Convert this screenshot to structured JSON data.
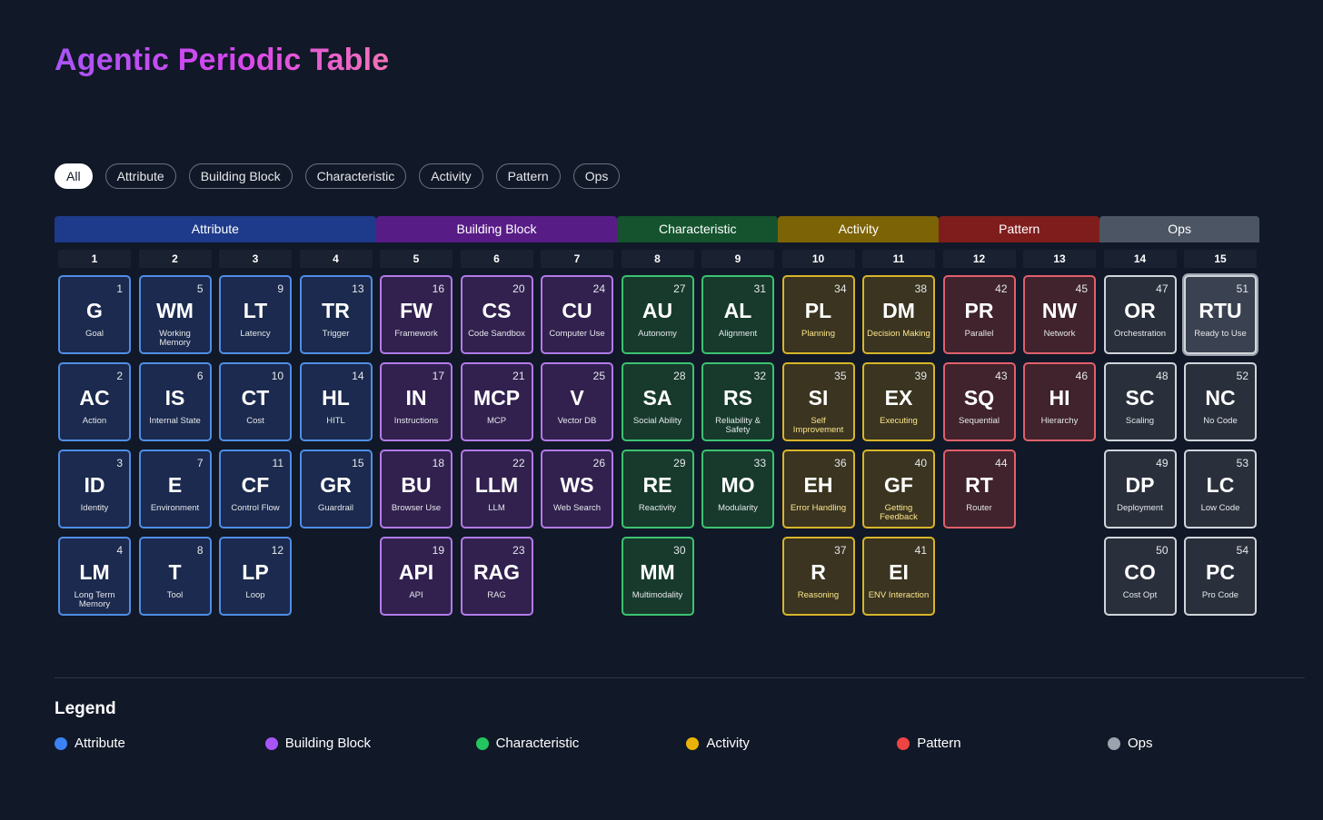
{
  "title": "Agentic Periodic Table",
  "filters": [
    "All",
    "Attribute",
    "Building Block",
    "Characteristic",
    "Activity",
    "Pattern",
    "Ops"
  ],
  "active_filter": "All",
  "categories": [
    {
      "key": "attribute",
      "label": "Attribute",
      "start_col": 1,
      "end_col": 4,
      "header_color": "#1e3a8a",
      "fill": "#1b2a4e",
      "border": "#4f8ee6"
    },
    {
      "key": "building",
      "label": "Building Block",
      "start_col": 5,
      "end_col": 7,
      "header_color": "#581c87",
      "fill": "#32214f",
      "border": "#b27be8"
    },
    {
      "key": "characteristic",
      "label": "Characteristic",
      "start_col": 8,
      "end_col": 9,
      "header_color": "#14532d",
      "fill": "#173a2c",
      "border": "#3dc271"
    },
    {
      "key": "activity",
      "label": "Activity",
      "start_col": 10,
      "end_col": 11,
      "header_color": "#7c6305",
      "fill": "#3a3420",
      "border": "#d8b52a"
    },
    {
      "key": "pattern",
      "label": "Pattern",
      "start_col": 12,
      "end_col": 13,
      "header_color": "#7f1d1d",
      "fill": "#40232c",
      "border": "#e0606b"
    },
    {
      "key": "ops",
      "label": "Ops",
      "start_col": 14,
      "end_col": 15,
      "header_color": "#4b5563",
      "fill": "#2a303b",
      "border": "#d1d5db"
    }
  ],
  "columns": [
    "1",
    "2",
    "3",
    "4",
    "5",
    "6",
    "7",
    "8",
    "9",
    "10",
    "11",
    "12",
    "13",
    "14",
    "15"
  ],
  "elements": [
    {
      "n": "1",
      "sym": "G",
      "name": "Goal",
      "cat": "attribute",
      "col": 1,
      "row": 1
    },
    {
      "n": "2",
      "sym": "AC",
      "name": "Action",
      "cat": "attribute",
      "col": 1,
      "row": 2
    },
    {
      "n": "3",
      "sym": "ID",
      "name": "Identity",
      "cat": "attribute",
      "col": 1,
      "row": 3
    },
    {
      "n": "4",
      "sym": "LM",
      "name": "Long Term Memory",
      "cat": "attribute",
      "col": 1,
      "row": 4
    },
    {
      "n": "5",
      "sym": "WM",
      "name": "Working Memory",
      "cat": "attribute",
      "col": 2,
      "row": 1
    },
    {
      "n": "6",
      "sym": "IS",
      "name": "Internal State",
      "cat": "attribute",
      "col": 2,
      "row": 2
    },
    {
      "n": "7",
      "sym": "E",
      "name": "Environment",
      "cat": "attribute",
      "col": 2,
      "row": 3
    },
    {
      "n": "8",
      "sym": "T",
      "name": "Tool",
      "cat": "attribute",
      "col": 2,
      "row": 4
    },
    {
      "n": "9",
      "sym": "LT",
      "name": "Latency",
      "cat": "attribute",
      "col": 3,
      "row": 1
    },
    {
      "n": "10",
      "sym": "CT",
      "name": "Cost",
      "cat": "attribute",
      "col": 3,
      "row": 2
    },
    {
      "n": "11",
      "sym": "CF",
      "name": "Control Flow",
      "cat": "attribute",
      "col": 3,
      "row": 3
    },
    {
      "n": "12",
      "sym": "LP",
      "name": "Loop",
      "cat": "attribute",
      "col": 3,
      "row": 4
    },
    {
      "n": "13",
      "sym": "TR",
      "name": "Trigger",
      "cat": "attribute",
      "col": 4,
      "row": 1
    },
    {
      "n": "14",
      "sym": "HL",
      "name": "HITL",
      "cat": "attribute",
      "col": 4,
      "row": 2
    },
    {
      "n": "15",
      "sym": "GR",
      "name": "Guardrail",
      "cat": "attribute",
      "col": 4,
      "row": 3
    },
    {
      "n": "16",
      "sym": "FW",
      "name": "Framework",
      "cat": "building",
      "col": 5,
      "row": 1
    },
    {
      "n": "17",
      "sym": "IN",
      "name": "Instructions",
      "cat": "building",
      "col": 5,
      "row": 2
    },
    {
      "n": "18",
      "sym": "BU",
      "name": "Browser Use",
      "cat": "building",
      "col": 5,
      "row": 3
    },
    {
      "n": "19",
      "sym": "API",
      "name": "API",
      "cat": "building",
      "col": 5,
      "row": 4
    },
    {
      "n": "20",
      "sym": "CS",
      "name": "Code Sandbox",
      "cat": "building",
      "col": 6,
      "row": 1
    },
    {
      "n": "21",
      "sym": "MCP",
      "name": "MCP",
      "cat": "building",
      "col": 6,
      "row": 2
    },
    {
      "n": "22",
      "sym": "LLM",
      "name": "LLM",
      "cat": "building",
      "col": 6,
      "row": 3
    },
    {
      "n": "23",
      "sym": "RAG",
      "name": "RAG",
      "cat": "building",
      "col": 6,
      "row": 4
    },
    {
      "n": "24",
      "sym": "CU",
      "name": "Computer Use",
      "cat": "building",
      "col": 7,
      "row": 1
    },
    {
      "n": "25",
      "sym": "V",
      "name": "Vector DB",
      "cat": "building",
      "col": 7,
      "row": 2
    },
    {
      "n": "26",
      "sym": "WS",
      "name": "Web Search",
      "cat": "building",
      "col": 7,
      "row": 3
    },
    {
      "n": "27",
      "sym": "AU",
      "name": "Autonomy",
      "cat": "characteristic",
      "col": 8,
      "row": 1
    },
    {
      "n": "28",
      "sym": "SA",
      "name": "Social Ability",
      "cat": "characteristic",
      "col": 8,
      "row": 2
    },
    {
      "n": "29",
      "sym": "RE",
      "name": "Reactivity",
      "cat": "characteristic",
      "col": 8,
      "row": 3
    },
    {
      "n": "30",
      "sym": "MM",
      "name": "Multimodality",
      "cat": "characteristic",
      "col": 8,
      "row": 4
    },
    {
      "n": "31",
      "sym": "AL",
      "name": "Alignment",
      "cat": "characteristic",
      "col": 9,
      "row": 1
    },
    {
      "n": "32",
      "sym": "RS",
      "name": "Reliability & Safety",
      "cat": "characteristic",
      "col": 9,
      "row": 2
    },
    {
      "n": "33",
      "sym": "MO",
      "name": "Modularity",
      "cat": "characteristic",
      "col": 9,
      "row": 3
    },
    {
      "n": "34",
      "sym": "PL",
      "name": "Planning",
      "cat": "activity",
      "col": 10,
      "row": 1
    },
    {
      "n": "35",
      "sym": "SI",
      "name": "Self Improvement",
      "cat": "activity",
      "col": 10,
      "row": 2
    },
    {
      "n": "36",
      "sym": "EH",
      "name": "Error Handling",
      "cat": "activity",
      "col": 10,
      "row": 3
    },
    {
      "n": "37",
      "sym": "R",
      "name": "Reasoning",
      "cat": "activity",
      "col": 10,
      "row": 4
    },
    {
      "n": "38",
      "sym": "DM",
      "name": "Decision Making",
      "cat": "activity",
      "col": 11,
      "row": 1
    },
    {
      "n": "39",
      "sym": "EX",
      "name": "Executing",
      "cat": "activity",
      "col": 11,
      "row": 2
    },
    {
      "n": "40",
      "sym": "GF",
      "name": "Getting Feedback",
      "cat": "activity",
      "col": 11,
      "row": 3
    },
    {
      "n": "41",
      "sym": "EI",
      "name": "ENV Interaction",
      "cat": "activity",
      "col": 11,
      "row": 4
    },
    {
      "n": "42",
      "sym": "PR",
      "name": "Parallel",
      "cat": "pattern",
      "col": 12,
      "row": 1
    },
    {
      "n": "43",
      "sym": "SQ",
      "name": "Sequential",
      "cat": "pattern",
      "col": 12,
      "row": 2
    },
    {
      "n": "44",
      "sym": "RT",
      "name": "Router",
      "cat": "pattern",
      "col": 12,
      "row": 3
    },
    {
      "n": "45",
      "sym": "NW",
      "name": "Network",
      "cat": "pattern",
      "col": 13,
      "row": 1
    },
    {
      "n": "46",
      "sym": "HI",
      "name": "Hierarchy",
      "cat": "pattern",
      "col": 13,
      "row": 2
    },
    {
      "n": "47",
      "sym": "OR",
      "name": "Orchestration",
      "cat": "ops",
      "col": 14,
      "row": 1
    },
    {
      "n": "48",
      "sym": "SC",
      "name": "Scaling",
      "cat": "ops",
      "col": 14,
      "row": 2
    },
    {
      "n": "49",
      "sym": "DP",
      "name": "Deployment",
      "cat": "ops",
      "col": 14,
      "row": 3
    },
    {
      "n": "50",
      "sym": "CO",
      "name": "Cost Opt",
      "cat": "ops",
      "col": 14,
      "row": 4
    },
    {
      "n": "51",
      "sym": "RTU",
      "name": "Ready to Use",
      "cat": "ops",
      "col": 15,
      "row": 1,
      "selected": true
    },
    {
      "n": "52",
      "sym": "NC",
      "name": "No Code",
      "cat": "ops",
      "col": 15,
      "row": 2
    },
    {
      "n": "53",
      "sym": "LC",
      "name": "Low Code",
      "cat": "ops",
      "col": 15,
      "row": 3
    },
    {
      "n": "54",
      "sym": "PC",
      "name": "Pro Code",
      "cat": "ops",
      "col": 15,
      "row": 4
    }
  ],
  "legend": {
    "title": "Legend",
    "items": [
      {
        "label": "Attribute",
        "color": "#3b82f6"
      },
      {
        "label": "Building Block",
        "color": "#a855f7"
      },
      {
        "label": "Characteristic",
        "color": "#22c55e"
      },
      {
        "label": "Activity",
        "color": "#eab308"
      },
      {
        "label": "Pattern",
        "color": "#ef4444"
      },
      {
        "label": "Ops",
        "color": "#9ca3af"
      }
    ]
  }
}
